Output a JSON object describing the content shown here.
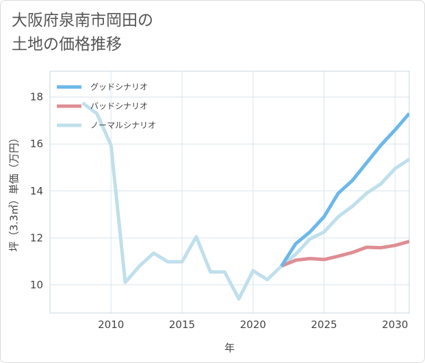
{
  "title": {
    "line1": "大阪府泉南市岡田の",
    "line2": "土地の価格推移"
  },
  "chart_data": {
    "type": "line",
    "xlabel": "年",
    "ylabel": "坪（3.3㎡）単価（万円）",
    "xlim": [
      2005.7,
      2031
    ],
    "ylim": [
      8.8,
      19.1
    ],
    "x_ticks": [
      2010,
      2015,
      2020,
      2025,
      2030
    ],
    "y_ticks": [
      10,
      12,
      14,
      16,
      18
    ],
    "grid": true,
    "legend_position": "top-left",
    "series": [
      {
        "name": "グッドシナリオ",
        "color": "#6cb8ea",
        "x": [
          2022,
          2023,
          2024,
          2025,
          2026,
          2027,
          2028,
          2029,
          2030,
          2031
        ],
        "values": [
          10.8,
          11.75,
          12.25,
          12.9,
          13.9,
          14.45,
          15.2,
          15.95,
          16.6,
          17.3
        ]
      },
      {
        "name": "バッドシナリオ",
        "color": "#de8e94",
        "x": [
          2022,
          2023,
          2024,
          2025,
          2026,
          2027,
          2028,
          2029,
          2030,
          2031
        ],
        "values": [
          10.8,
          11.05,
          11.12,
          11.08,
          11.22,
          11.38,
          11.6,
          11.58,
          11.68,
          11.85
        ]
      },
      {
        "name": "ノーマルシナリオ",
        "color": "#bfdfeb",
        "x": [
          2008,
          2009,
          2010,
          2011,
          2012,
          2013,
          2014,
          2015,
          2016,
          2017,
          2018,
          2019,
          2020,
          2021,
          2022,
          2023,
          2024,
          2025,
          2026,
          2027,
          2028,
          2029,
          2030,
          2031
        ],
        "values": [
          17.75,
          17.3,
          15.95,
          10.1,
          10.8,
          11.35,
          10.98,
          10.98,
          12.05,
          10.55,
          10.55,
          9.4,
          10.6,
          10.22,
          10.8,
          11.3,
          11.95,
          12.25,
          12.9,
          13.35,
          13.9,
          14.3,
          14.95,
          15.35
        ]
      }
    ]
  }
}
